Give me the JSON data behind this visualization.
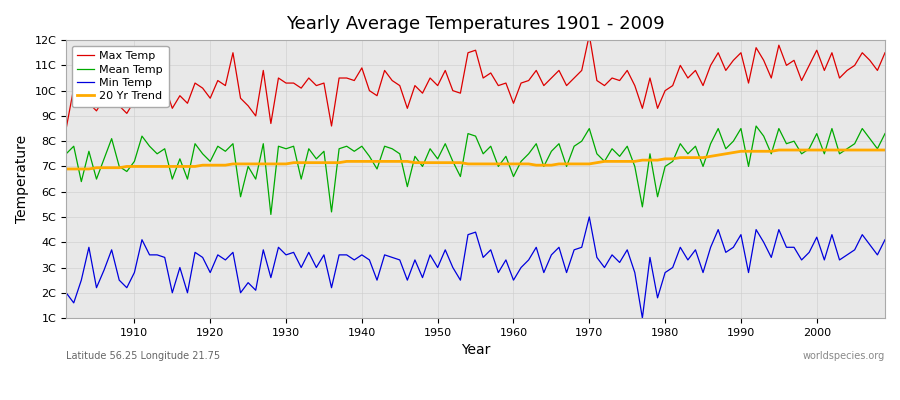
{
  "title": "Yearly Average Temperatures 1901 - 2009",
  "xlabel": "Year",
  "ylabel": "Temperature",
  "subtitle_left": "Latitude 56.25 Longitude 21.75",
  "subtitle_right": "worldspecies.org",
  "ylim": [
    1,
    12
  ],
  "yticks": [
    1,
    2,
    3,
    4,
    5,
    6,
    7,
    8,
    9,
    10,
    11,
    12
  ],
  "ytick_labels": [
    "1C",
    "2C",
    "3C",
    "4C",
    "5C",
    "6C",
    "7C",
    "8C",
    "9C",
    "10C",
    "11C",
    "12C"
  ],
  "start_year": 1901,
  "end_year": 2009,
  "colors": {
    "max": "#dd0000",
    "mean": "#00aa00",
    "min": "#0000dd",
    "trend": "#ffaa00",
    "background": "#e8e8e8",
    "grid": "#cccccc"
  },
  "legend": {
    "max": "Max Temp",
    "mean": "Mean Temp",
    "min": "Min Temp",
    "trend": "20 Yr Trend"
  },
  "max_temp": [
    8.5,
    10.1,
    9.8,
    9.5,
    9.2,
    9.7,
    10.0,
    9.4,
    9.1,
    9.6,
    11.0,
    10.5,
    10.8,
    10.2,
    9.3,
    9.8,
    9.5,
    10.3,
    10.1,
    9.7,
    10.4,
    10.2,
    11.5,
    9.7,
    9.4,
    9.0,
    10.8,
    8.7,
    10.5,
    10.3,
    10.3,
    10.1,
    10.5,
    10.2,
    10.3,
    8.6,
    10.5,
    10.5,
    10.4,
    10.9,
    10.0,
    9.8,
    10.8,
    10.4,
    10.2,
    9.3,
    10.2,
    9.9,
    10.5,
    10.2,
    10.8,
    10.0,
    9.9,
    11.5,
    11.6,
    10.5,
    10.7,
    10.2,
    10.3,
    9.5,
    10.3,
    10.4,
    10.8,
    10.2,
    10.5,
    10.8,
    10.2,
    10.5,
    10.8,
    12.2,
    10.4,
    10.2,
    10.5,
    10.4,
    10.8,
    10.2,
    9.3,
    10.5,
    9.3,
    10.0,
    10.2,
    11.0,
    10.5,
    10.8,
    10.2,
    11.0,
    11.5,
    10.8,
    11.2,
    11.5,
    10.3,
    11.7,
    11.2,
    10.5,
    11.8,
    11.0,
    11.2,
    10.4,
    11.0,
    11.6,
    10.8,
    11.5,
    10.5,
    10.8,
    11.0,
    11.5,
    11.2,
    10.8,
    11.5
  ],
  "mean_temp": [
    7.5,
    7.8,
    6.4,
    7.6,
    6.5,
    7.3,
    8.1,
    7.0,
    6.8,
    7.2,
    8.2,
    7.8,
    7.5,
    7.7,
    6.5,
    7.3,
    6.5,
    7.9,
    7.5,
    7.2,
    7.8,
    7.6,
    7.9,
    5.8,
    7.0,
    6.5,
    7.9,
    5.1,
    7.8,
    7.7,
    7.8,
    6.5,
    7.7,
    7.3,
    7.6,
    5.2,
    7.7,
    7.8,
    7.6,
    7.8,
    7.4,
    6.9,
    7.8,
    7.7,
    7.5,
    6.2,
    7.4,
    7.0,
    7.7,
    7.3,
    7.9,
    7.2,
    6.6,
    8.3,
    8.2,
    7.5,
    7.8,
    7.0,
    7.4,
    6.6,
    7.2,
    7.5,
    7.9,
    7.0,
    7.6,
    7.9,
    7.0,
    7.8,
    8.0,
    8.5,
    7.5,
    7.2,
    7.7,
    7.4,
    7.8,
    7.0,
    5.4,
    7.5,
    5.8,
    7.0,
    7.2,
    7.9,
    7.5,
    7.8,
    7.0,
    7.9,
    8.5,
    7.7,
    8.0,
    8.5,
    7.0,
    8.6,
    8.2,
    7.5,
    8.5,
    7.9,
    8.0,
    7.5,
    7.7,
    8.3,
    7.5,
    8.5,
    7.5,
    7.7,
    7.9,
    8.5,
    8.1,
    7.7,
    8.3
  ],
  "min_temp": [
    2.0,
    1.6,
    2.5,
    3.8,
    2.2,
    2.9,
    3.7,
    2.5,
    2.2,
    2.8,
    4.1,
    3.5,
    3.5,
    3.4,
    2.0,
    3.0,
    2.0,
    3.6,
    3.4,
    2.8,
    3.5,
    3.3,
    3.6,
    2.0,
    2.4,
    2.1,
    3.7,
    2.6,
    3.8,
    3.5,
    3.6,
    3.0,
    3.6,
    3.0,
    3.5,
    2.2,
    3.5,
    3.5,
    3.3,
    3.5,
    3.3,
    2.5,
    3.5,
    3.4,
    3.3,
    2.5,
    3.3,
    2.6,
    3.5,
    3.0,
    3.7,
    3.0,
    2.5,
    4.3,
    4.4,
    3.4,
    3.7,
    2.8,
    3.3,
    2.5,
    3.0,
    3.3,
    3.8,
    2.8,
    3.5,
    3.8,
    2.8,
    3.7,
    3.8,
    5.0,
    3.4,
    3.0,
    3.5,
    3.2,
    3.7,
    2.8,
    1.0,
    3.4,
    1.8,
    2.8,
    3.0,
    3.8,
    3.3,
    3.7,
    2.8,
    3.8,
    4.5,
    3.6,
    3.8,
    4.3,
    2.8,
    4.5,
    4.0,
    3.4,
    4.5,
    3.8,
    3.8,
    3.3,
    3.6,
    4.2,
    3.3,
    4.3,
    3.3,
    3.5,
    3.7,
    4.3,
    3.9,
    3.5,
    4.1
  ],
  "trend": [
    6.9,
    6.9,
    6.9,
    6.9,
    6.95,
    6.95,
    6.95,
    6.95,
    7.0,
    7.0,
    7.0,
    7.0,
    7.0,
    7.0,
    7.0,
    7.0,
    7.0,
    7.0,
    7.05,
    7.05,
    7.05,
    7.05,
    7.1,
    7.1,
    7.1,
    7.1,
    7.1,
    7.1,
    7.1,
    7.1,
    7.15,
    7.15,
    7.15,
    7.15,
    7.15,
    7.15,
    7.15,
    7.2,
    7.2,
    7.2,
    7.2,
    7.2,
    7.2,
    7.2,
    7.2,
    7.2,
    7.15,
    7.15,
    7.15,
    7.15,
    7.15,
    7.15,
    7.15,
    7.1,
    7.1,
    7.1,
    7.1,
    7.1,
    7.1,
    7.1,
    7.1,
    7.1,
    7.05,
    7.05,
    7.05,
    7.1,
    7.1,
    7.1,
    7.1,
    7.1,
    7.15,
    7.2,
    7.2,
    7.2,
    7.2,
    7.2,
    7.25,
    7.25,
    7.25,
    7.3,
    7.3,
    7.35,
    7.35,
    7.35,
    7.35,
    7.4,
    7.45,
    7.5,
    7.55,
    7.6,
    7.6,
    7.6,
    7.6,
    7.6,
    7.65,
    7.65,
    7.65,
    7.65,
    7.65,
    7.65,
    7.65,
    7.65,
    7.65,
    7.65,
    7.65,
    7.65,
    7.65,
    7.65,
    7.65
  ]
}
